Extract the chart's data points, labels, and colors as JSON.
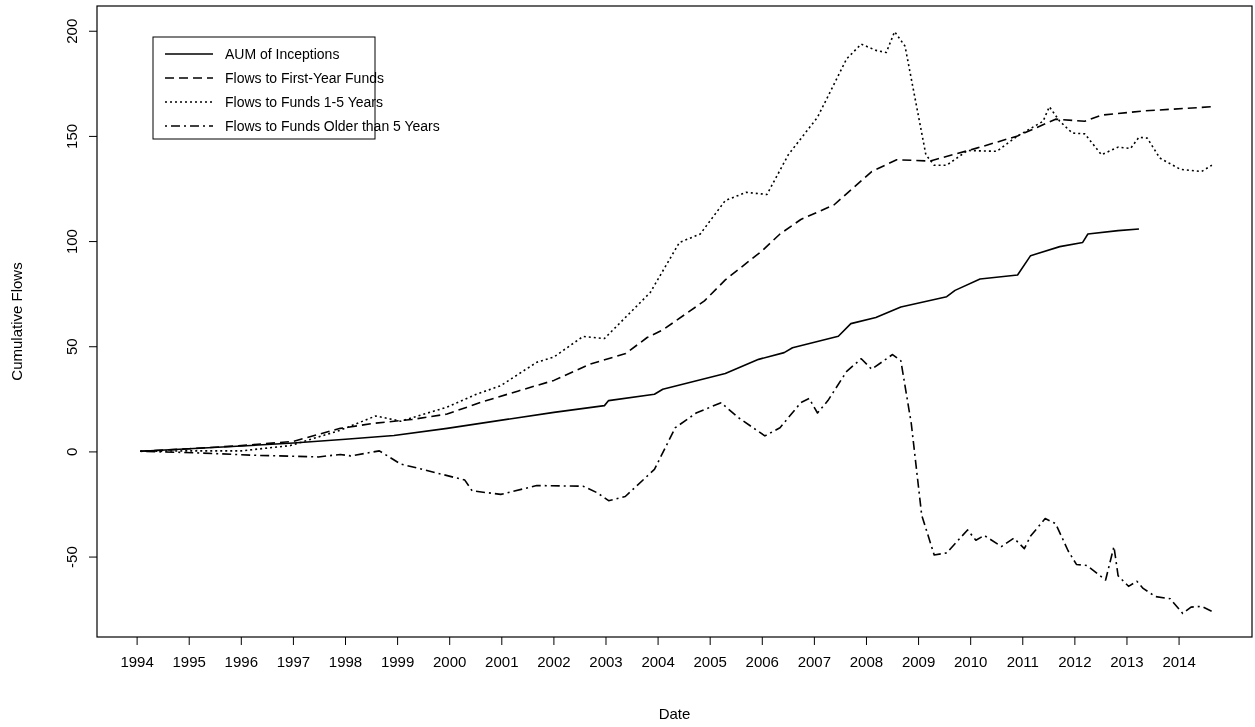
{
  "chart_data": {
    "type": "line",
    "xlabel": "Date",
    "ylabel": "Cumulative Flows",
    "xlim": [
      1993.23,
      2015.4
    ],
    "ylim": [
      -88,
      212
    ],
    "xticks": [
      1994,
      1995,
      1996,
      1997,
      1998,
      1999,
      2000,
      2001,
      2002,
      2003,
      2004,
      2005,
      2006,
      2007,
      2008,
      2009,
      2010,
      2011,
      2012,
      2013,
      2014
    ],
    "yticks": [
      -50,
      0,
      50,
      100,
      150,
      200
    ],
    "grid": false,
    "legend": "top left",
    "marker": "none",
    "series": [
      {
        "name": "AUM of Inceptions",
        "color": "#000000",
        "line_style": "solid",
        "x": [
          1994.06,
          1995,
          1996,
          1997,
          1998,
          1998.93,
          1999.95,
          2002.0,
          2002.97,
          2003.05,
          2003.93,
          2004.09,
          2005.29,
          2005.93,
          2006.42,
          2006.58,
          2007.46,
          2007.7,
          2008.18,
          2008.66,
          2009.54,
          2009.7,
          2010.18,
          2010.9,
          2011.15,
          2011.71,
          2012.15,
          2012.25,
          2012.83,
          2013.23
        ],
        "values": [
          0.3,
          1.5,
          2.8,
          4.2,
          6,
          7.8,
          11.2,
          18.8,
          22,
          24.4,
          27.4,
          29.8,
          37.3,
          44,
          47.2,
          49.5,
          55,
          61,
          63.9,
          68.9,
          73.8,
          76.8,
          82.2,
          84.1,
          93.3,
          97.6,
          99.6,
          103.6,
          105.2,
          106
        ]
      },
      {
        "name": "Flows to First-Year Funds",
        "color": "#000000",
        "line_style": "dashed",
        "x": [
          1994.06,
          1995,
          1996,
          1997,
          1997.9,
          1998.58,
          1999.27,
          1999.95,
          2000.64,
          2001.32,
          2002.0,
          2002.69,
          2003.38,
          2003.79,
          2004.09,
          2004.89,
          2005.29,
          2006.0,
          2006.34,
          2006.74,
          2007.38,
          2008.1,
          2008.58,
          2009.22,
          2010.1,
          2010.9,
          2011.63,
          2012.19,
          2012.51,
          2013.31,
          2014.63
        ],
        "values": [
          0.3,
          1.5,
          3,
          5,
          11.2,
          13.7,
          15.4,
          18,
          23.9,
          29,
          34,
          41.7,
          46.8,
          54.4,
          58,
          71.8,
          81.8,
          95.7,
          103.6,
          110.5,
          117.5,
          133.3,
          138.9,
          138.3,
          144.3,
          150.2,
          158.2,
          157.2,
          160.1,
          162.1,
          164.1
        ]
      },
      {
        "name": "Flows to Funds 1-5 Years",
        "color": "#000000",
        "line_style": "dotted",
        "x": [
          1994.06,
          1995,
          1996,
          1996.94,
          1997.9,
          1998.58,
          1999.06,
          1999.95,
          2000.5,
          2000.98,
          2001.67,
          2002.0,
          2002.56,
          2002.97,
          2003.85,
          2004.41,
          2004.81,
          2005.29,
          2005.69,
          2006.09,
          2006.5,
          2007.06,
          2007.62,
          2007.9,
          2008.18,
          2008.38,
          2008.54,
          2008.74,
          2009.14,
          2009.3,
          2009.54,
          2009.94,
          2010.5,
          2010.9,
          2011.39,
          2011.51,
          2011.71,
          2011.95,
          2012.19,
          2012.51,
          2012.83,
          2013.07,
          2013.23,
          2013.39,
          2013.63,
          2014.03,
          2014.43,
          2014.63
        ],
        "values": [
          0.3,
          0.5,
          0.5,
          3,
          10.3,
          17.1,
          14.6,
          21.3,
          27.3,
          31.5,
          42.6,
          45.1,
          54.9,
          53.9,
          75.8,
          99.6,
          103.6,
          119.5,
          123.4,
          122.4,
          141.3,
          159.1,
          186.9,
          193.9,
          190.9,
          189.9,
          199.8,
          192.9,
          141.3,
          136.3,
          136.3,
          143.3,
          142.9,
          150.2,
          157.2,
          164.1,
          157.2,
          151.6,
          151.2,
          141.3,
          144.9,
          144.3,
          149.6,
          149.2,
          139.7,
          134.3,
          133.3,
          136.3
        ]
      },
      {
        "name": "Flows to Funds Older than 5 Years",
        "color": "#000000",
        "line_style": "dashdot",
        "x": [
          1994.06,
          1995.1,
          1996.25,
          1997.48,
          1997.9,
          1998.1,
          1998.65,
          1999.06,
          1999.4,
          2000.29,
          2000.43,
          2000.98,
          2001.67,
          2002.56,
          2002.83,
          2003.05,
          2003.37,
          2003.93,
          2004.33,
          2004.73,
          2005.21,
          2005.53,
          2006.05,
          2006.34,
          2006.74,
          2006.9,
          2007.06,
          2007.26,
          2007.62,
          2007.9,
          2008.1,
          2008.5,
          2008.66,
          2008.86,
          2009.06,
          2009.3,
          2009.54,
          2009.94,
          2010.1,
          2010.26,
          2010.59,
          2010.83,
          2011.03,
          2011.15,
          2011.43,
          2011.63,
          2011.87,
          2012.03,
          2012.23,
          2012.59,
          2012.75,
          2012.83,
          2013.03,
          2013.19,
          2013.31,
          2013.55,
          2013.83,
          2014.07,
          2014.23,
          2014.43,
          2014.63
        ],
        "values": [
          0.3,
          -0.4,
          -1.6,
          -2.4,
          -1.2,
          -1.9,
          0.5,
          -5.8,
          -7.8,
          -13.4,
          -18.5,
          -20.2,
          -16,
          -16.3,
          -19.4,
          -23.2,
          -21.2,
          -8.3,
          11.5,
          18.5,
          23.4,
          16.5,
          7.6,
          11.5,
          23.4,
          25.4,
          18.5,
          24.4,
          38.3,
          44.3,
          39.3,
          46.3,
          43.3,
          13.5,
          -30.1,
          -49,
          -48,
          -37.1,
          -42,
          -39.7,
          -45,
          -41,
          -46,
          -40,
          -31.7,
          -34.1,
          -47,
          -53.5,
          -54,
          -60.9,
          -45,
          -58.9,
          -63.9,
          -61.5,
          -64.9,
          -68.8,
          -69.8,
          -76.8,
          -73.8,
          -73.4,
          -75.8
        ]
      }
    ]
  }
}
